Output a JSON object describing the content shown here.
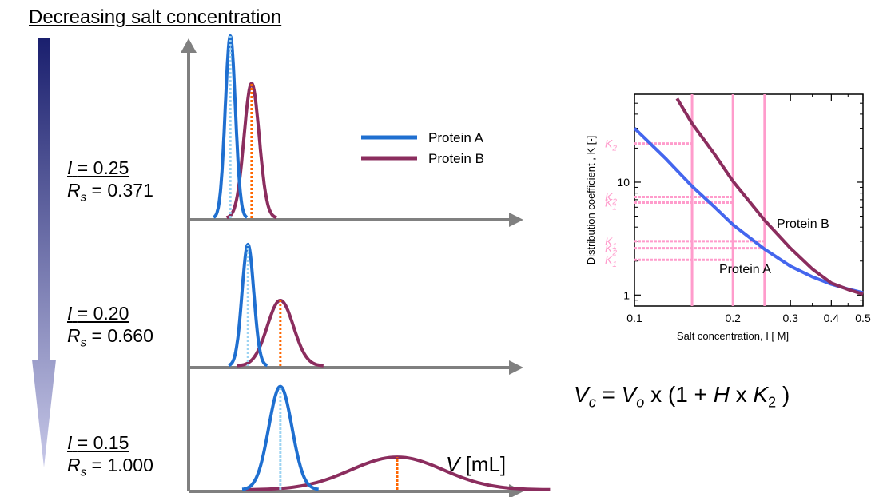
{
  "heading": "Decreasing salt concentration",
  "conditions": [
    {
      "I_label": "I",
      "I_value": "= 0.25",
      "Rs_label": "R",
      "Rs_sub": "s",
      "Rs_value": "= 0.371"
    },
    {
      "I_label": "I",
      "I_value": "= 0.20",
      "Rs_label": "R",
      "Rs_sub": "s",
      "Rs_value": "= 0.660"
    },
    {
      "I_label": "I",
      "I_value": "= 0.15",
      "Rs_label": "R",
      "Rs_sub": "s",
      "Rs_value": "= 1.000"
    }
  ],
  "x_axis_label": {
    "symbol": "V",
    "unit": "[mL]"
  },
  "formula": {
    "Vc": "V",
    "Vc_sub": "c",
    "eq": "=",
    "Vo": "V",
    "Vo_sub": "o",
    "mid": "x (1 +",
    "H": "H",
    "x": "x",
    "K": "K",
    "K_sub": "2",
    "close": ")"
  },
  "colors": {
    "protein_a": "#1f6fd0",
    "protein_b": "#8b2d5e",
    "axis": "#808080",
    "marker_a": "#9cd3f2",
    "marker_b": "#ff6600",
    "pink": "#ff9ccc",
    "arrow_top": "#1a1f6e",
    "arrow_bottom": "#c7c8e8",
    "line_a": "#4466ee"
  },
  "chart_data": [
    {
      "type": "line",
      "panels": [
        {
          "I": 0.25,
          "Rs": 0.371,
          "series": [
            {
              "name": "Protein A",
              "peak_x": 0.9,
              "peak_height": 1.0,
              "width": 0.24
            },
            {
              "name": "Protein B",
              "peak_x": 1.36,
              "peak_height": 0.74,
              "width": 0.36
            }
          ]
        },
        {
          "I": 0.2,
          "Rs": 0.66,
          "series": [
            {
              "name": "Protein A",
              "peak_x": 1.28,
              "peak_height": 1.0,
              "width": 0.28
            },
            {
              "name": "Protein B",
              "peak_x": 1.98,
              "peak_height": 0.54,
              "width": 0.62
            }
          ]
        },
        {
          "I": 0.15,
          "Rs": 1.0,
          "series": [
            {
              "name": "Protein A",
              "peak_x": 1.98,
              "peak_height": 0.98,
              "width": 0.55
            },
            {
              "name": "Protein B",
              "peak_x": 4.5,
              "peak_height": 0.31,
              "width": 2.2
            }
          ]
        }
      ],
      "legend": [
        "Protein A",
        "Protein B"
      ],
      "legend_placement": "top-right",
      "xlabel": "V [mL]"
    },
    {
      "type": "line",
      "xlabel": "Salt  concentration, I [ M]",
      "ylabel": "Distribution coefficient , K [-]",
      "xscale": "log",
      "yscale": "log",
      "xlim": [
        0.1,
        0.5
      ],
      "ylim": [
        0.8,
        60
      ],
      "x_ticks": [
        "0.1",
        "0.2",
        "0.3",
        "0.4",
        "0.5"
      ],
      "y_ticks": [
        "1",
        "10"
      ],
      "series": [
        {
          "name": "Protein A",
          "points": [
            [
              0.1,
              30
            ],
            [
              0.125,
              16
            ],
            [
              0.15,
              9.2
            ],
            [
              0.175,
              6.1
            ],
            [
              0.2,
              4.2
            ],
            [
              0.25,
              2.55
            ],
            [
              0.3,
              1.8
            ],
            [
              0.35,
              1.45
            ],
            [
              0.4,
              1.25
            ],
            [
              0.45,
              1.13
            ],
            [
              0.5,
              1.05
            ]
          ]
        },
        {
          "name": "Protein B",
          "points": [
            [
              0.135,
              55
            ],
            [
              0.15,
              33
            ],
            [
              0.175,
              18
            ],
            [
              0.2,
              10.2
            ],
            [
              0.25,
              4.6
            ],
            [
              0.3,
              2.6
            ],
            [
              0.35,
              1.7
            ],
            [
              0.4,
              1.28
            ],
            [
              0.45,
              1.12
            ],
            [
              0.5,
              1.02
            ]
          ]
        }
      ],
      "vertical_lines": [
        0.15,
        0.2,
        0.25
      ],
      "k_labels": [
        "K",
        "K",
        "K",
        "K",
        "K",
        "K"
      ],
      "k_subs": [
        "2",
        "2",
        "1",
        "1",
        "2",
        "1"
      ],
      "annotations": [
        "Protein A",
        "Protein B"
      ]
    }
  ]
}
